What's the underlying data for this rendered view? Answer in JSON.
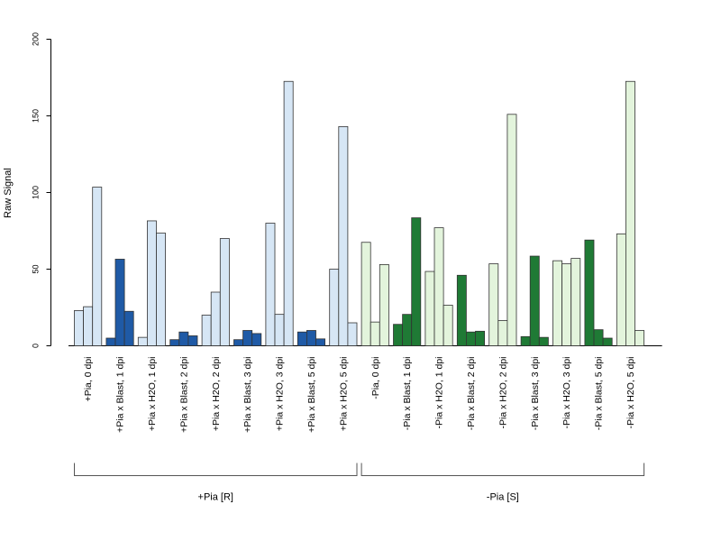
{
  "chart_data": {
    "type": "bar",
    "ylabel": "Raw Signal",
    "xlabel": "",
    "ylim": [
      0,
      200
    ],
    "yticks": [
      0,
      50,
      100,
      150,
      200
    ],
    "grid": false,
    "colors": {
      "light_blue": "#d6e6f5",
      "dark_blue": "#1f5aa6",
      "light_green": "#e3f4dc",
      "dark_green": "#1f7a35",
      "outline": "#333333"
    },
    "groups": [
      {
        "label": "+Pia, 0 dpi",
        "values": [
          23,
          25.5,
          103.5
        ],
        "shade": "light_blue"
      },
      {
        "label": "+Pia x Blast, 1 dpi",
        "values": [
          5,
          56.5,
          22.5
        ],
        "shade": "dark_blue"
      },
      {
        "label": "+Pia x H2O, 1 dpi",
        "values": [
          5.5,
          81.5,
          73.5
        ],
        "shade": "light_blue"
      },
      {
        "label": "+Pia x Blast, 2 dpi",
        "values": [
          4,
          9,
          6.5
        ],
        "shade": "dark_blue"
      },
      {
        "label": "+Pia x H2O, 2 dpi",
        "values": [
          20,
          35,
          70
        ],
        "shade": "light_blue"
      },
      {
        "label": "+Pia x Blast, 3 dpi",
        "values": [
          4,
          10,
          8
        ],
        "shade": "dark_blue"
      },
      {
        "label": "+Pia x H2O, 3 dpi",
        "values": [
          80,
          20.5,
          172.5
        ],
        "shade": "light_blue"
      },
      {
        "label": "+Pia x Blast, 5 dpi",
        "values": [
          9,
          10,
          4.5
        ],
        "shade": "dark_blue"
      },
      {
        "label": "+Pia x H2O, 5 dpi",
        "values": [
          50,
          143,
          15
        ],
        "shade": "light_blue"
      },
      {
        "label": "-Pia, 0 dpi",
        "values": [
          67.5,
          15.5,
          53
        ],
        "shade": "light_green"
      },
      {
        "label": "-Pia x Blast, 1 dpi",
        "values": [
          14,
          20.5,
          83.5
        ],
        "shade": "dark_green"
      },
      {
        "label": "-Pia x H2O, 1 dpi",
        "values": [
          48.5,
          77,
          26.5
        ],
        "shade": "light_green"
      },
      {
        "label": "-Pia x Blast, 2 dpi",
        "values": [
          46,
          9,
          9.5
        ],
        "shade": "dark_green"
      },
      {
        "label": "-Pia x H2O, 2 dpi",
        "values": [
          53.5,
          16.5,
          151
        ],
        "shade": "light_green"
      },
      {
        "label": "-Pia x Blast, 3 dpi",
        "values": [
          6,
          58.5,
          5.5
        ],
        "shade": "dark_green"
      },
      {
        "label": "-Pia x H2O, 3 dpi",
        "values": [
          55.5,
          53.5,
          57
        ],
        "shade": "light_green"
      },
      {
        "label": "-Pia x Blast, 5 dpi",
        "values": [
          69,
          10.5,
          5
        ],
        "shade": "dark_green"
      },
      {
        "label": "-Pia x H2O, 5 dpi",
        "values": [
          73,
          172.5,
          10
        ],
        "shade": "light_green"
      }
    ],
    "brackets": [
      {
        "label": "+Pia [R]",
        "from_group": 0,
        "to_group": 8
      },
      {
        "label": "-Pia [S]",
        "from_group": 9,
        "to_group": 17
      }
    ]
  }
}
